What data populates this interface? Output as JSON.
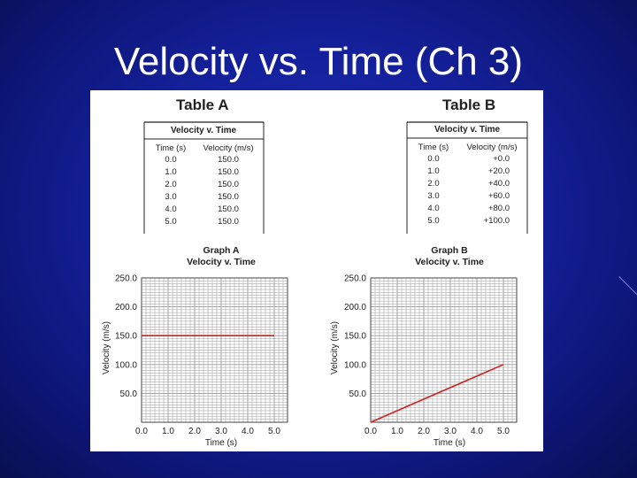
{
  "slide": {
    "title": "Velocity vs. Time (Ch 3)"
  },
  "colors": {
    "background": "#14209a",
    "panel": "#ffffff",
    "grid": "#9a9a9a",
    "data_line": "#cc2222"
  },
  "tables": [
    {
      "heading": "Table A",
      "caption": "Velocity v. Time",
      "columns": [
        "Time (s)",
        "Velocity (m/s)"
      ],
      "rows": [
        [
          "0.0",
          "150.0"
        ],
        [
          "1.0",
          "150.0"
        ],
        [
          "2.0",
          "150.0"
        ],
        [
          "3.0",
          "150.0"
        ],
        [
          "4.0",
          "150.0"
        ],
        [
          "5.0",
          "150.0"
        ]
      ]
    },
    {
      "heading": "Table B",
      "caption": "Velocity v. Time",
      "columns": [
        "Time (s)",
        "Velocity (m/s)"
      ],
      "rows": [
        [
          "0.0",
          "+0.0"
        ],
        [
          "1.0",
          "+20.0"
        ],
        [
          "2.0",
          "+40.0"
        ],
        [
          "3.0",
          "+60.0"
        ],
        [
          "4.0",
          "+80.0"
        ],
        [
          "5.0",
          "+100.0"
        ]
      ]
    }
  ],
  "chart_data": [
    {
      "type": "line",
      "title": "Graph A",
      "subtitle": "Velocity v. Time",
      "xlabel": "Time (s)",
      "ylabel": "Velocity (m/s)",
      "x": [
        0,
        1,
        2,
        3,
        4,
        5
      ],
      "series": [
        {
          "values": [
            150,
            150,
            150,
            150,
            150,
            150
          ]
        }
      ],
      "xlim": [
        0,
        5.5
      ],
      "ylim": [
        0,
        250
      ],
      "x_ticks": [
        "0.0",
        "1.0",
        "2.0",
        "3.0",
        "4.0",
        "5.0"
      ],
      "y_ticks": [
        "50.0",
        "100.0",
        "150.0",
        "200.0",
        "250.0"
      ],
      "grid": true
    },
    {
      "type": "line",
      "title": "Graph B",
      "subtitle": "Velocity v. Time",
      "xlabel": "Time (s)",
      "ylabel": "Velocity (m/s)",
      "x": [
        0,
        1,
        2,
        3,
        4,
        5
      ],
      "series": [
        {
          "values": [
            0,
            20,
            40,
            60,
            80,
            100
          ]
        }
      ],
      "xlim": [
        0,
        5.5
      ],
      "ylim": [
        0,
        250
      ],
      "x_ticks": [
        "0.0",
        "1.0",
        "2.0",
        "3.0",
        "4.0",
        "5.0"
      ],
      "y_ticks": [
        "50.0",
        "100.0",
        "150.0",
        "200.0",
        "250.0"
      ],
      "grid": true
    }
  ]
}
